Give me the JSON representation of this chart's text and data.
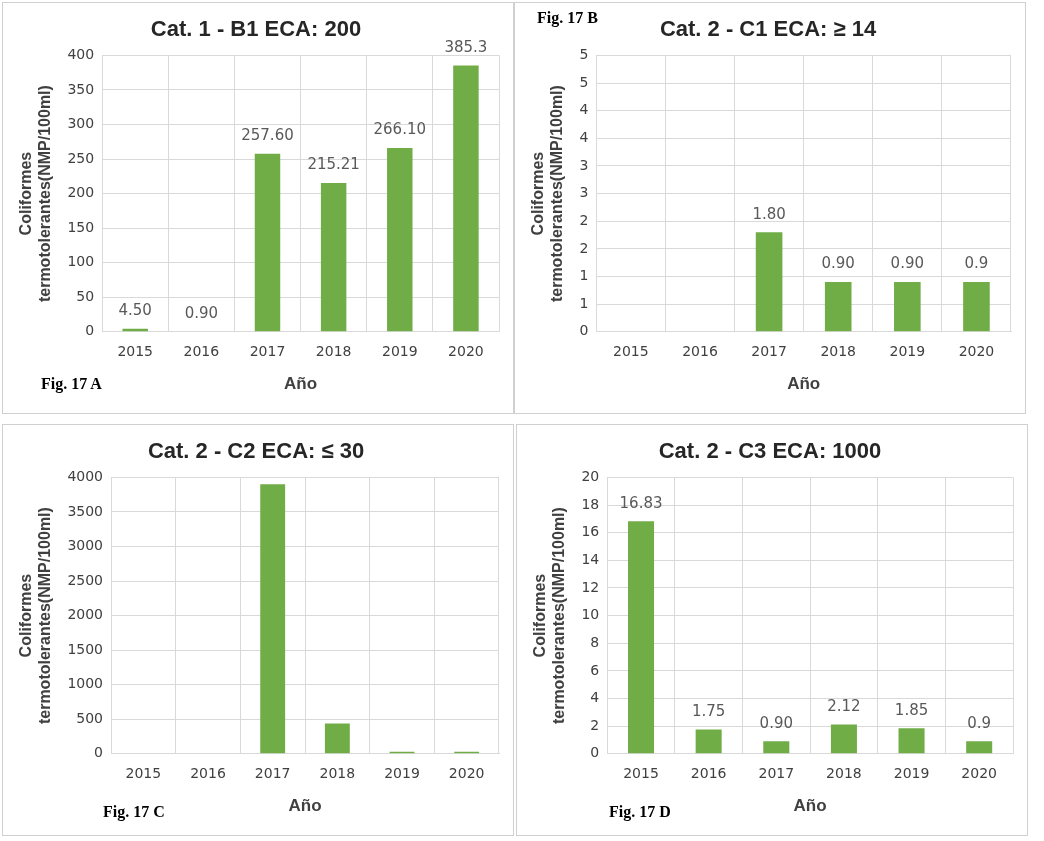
{
  "chart_data": [
    {
      "type": "bar",
      "title": "Cat. 1 - B1 ECA: 200",
      "xlabel": "Año",
      "ylabel": "Coliformes termotolerantes(NMP/100ml)",
      "annotations": [
        "Fig. 17 A"
      ],
      "categories": [
        "2015",
        "2016",
        "2017",
        "2018",
        "2019",
        "2020"
      ],
      "color": "#70ad47",
      "values": [
        4.5,
        0.9,
        257.6,
        215.21,
        266.1,
        385.3
      ],
      "value_labels": [
        "4.50",
        "0.90",
        "257.60",
        "215.21",
        "266.10",
        "385.3"
      ],
      "ylim": [
        0,
        400
      ],
      "yticks": [
        0,
        50,
        100,
        150,
        200,
        250,
        300,
        350,
        400
      ],
      "grid": true,
      "legend": false
    },
    {
      "type": "bar",
      "title": "Cat. 2 - C1 ECA: ≥ 14",
      "xlabel": "Año",
      "ylabel": "Coliformes termotolerantes(NMP/100ml)",
      "annotations": [
        "Fig. 17 B"
      ],
      "categories": [
        "2015",
        "2016",
        "2017",
        "2018",
        "2019",
        "2020"
      ],
      "color": "#70ad47",
      "values": [
        null,
        null,
        1.8,
        0.9,
        0.9,
        0.9
      ],
      "value_labels": [
        null,
        null,
        "1.80",
        "0.90",
        "0.90",
        "0.9"
      ],
      "ylim": [
        0,
        5
      ],
      "yticks": [
        0,
        {
          "value": 0.5,
          "label": "1"
        },
        1,
        {
          "value": 1.5,
          "label": "2"
        },
        2,
        {
          "value": 2.5,
          "label": "3"
        },
        3,
        {
          "value": 3.5,
          "label": "4"
        },
        4,
        {
          "value": 4.5,
          "label": "5"
        },
        5
      ],
      "grid": true,
      "legend": false
    },
    {
      "type": "bar",
      "title": "Cat. 2 - C2 ECA: ≤ 30",
      "xlabel": "Año",
      "ylabel": "Coliformes termotolerantes(NMP/100ml)",
      "annotations": [
        "Fig. 17 C"
      ],
      "categories": [
        "2015",
        "2016",
        "2017",
        "2018",
        "2019",
        "2020"
      ],
      "color": "#70ad47",
      "values": [
        null,
        null,
        3900,
        440,
        30,
        30
      ],
      "ylim": [
        0,
        4000
      ],
      "yticks": [
        0,
        500,
        1000,
        1500,
        2000,
        2500,
        3000,
        3500,
        4000
      ],
      "grid": true,
      "legend": false
    },
    {
      "type": "bar",
      "title": "Cat. 2 - C3 ECA: 1000",
      "xlabel": "Año",
      "ylabel": "Coliformes termotolerantes(NMP/100ml)",
      "annotations": [
        "Fig. 17 D"
      ],
      "categories": [
        "2015",
        "2016",
        "2017",
        "2018",
        "2019",
        "2020"
      ],
      "color": "#70ad47",
      "values": [
        16.83,
        1.75,
        0.9,
        2.12,
        1.85,
        0.9
      ],
      "value_labels": [
        "16.83",
        "1.75",
        "0.90",
        "2.12",
        "1.85",
        "0.9"
      ],
      "ylim": [
        0,
        20
      ],
      "yticks": [
        0,
        2,
        4,
        6,
        8,
        10,
        12,
        14,
        16,
        18,
        20
      ],
      "grid": true,
      "legend": false
    }
  ]
}
